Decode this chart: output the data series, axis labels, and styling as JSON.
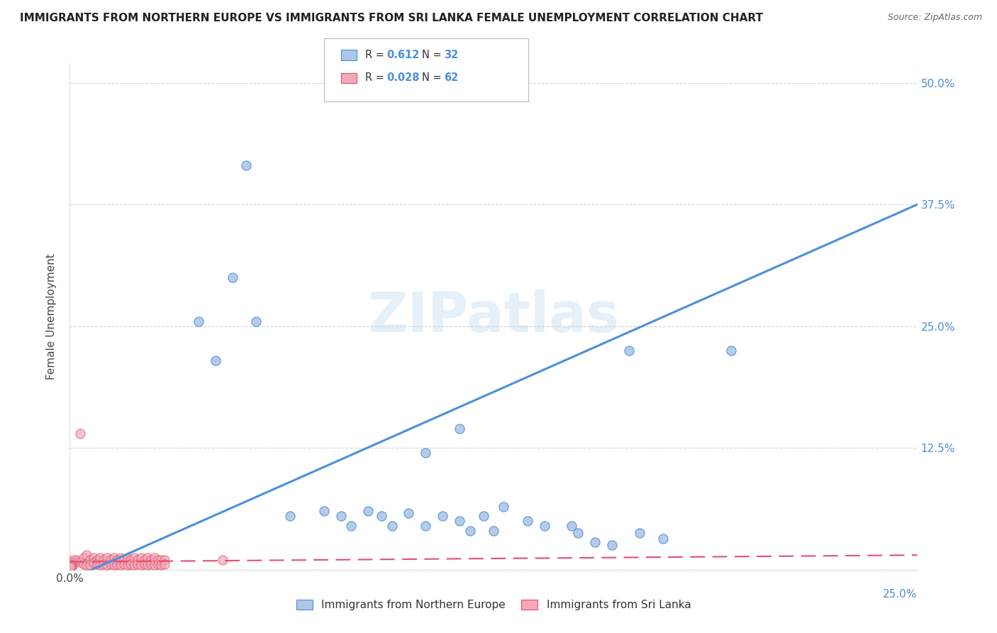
{
  "title": "IMMIGRANTS FROM NORTHERN EUROPE VS IMMIGRANTS FROM SRI LANKA FEMALE UNEMPLOYMENT CORRELATION CHART",
  "source": "Source: ZipAtlas.com",
  "ylabel": "Female Unemployment",
  "xlim": [
    0.0,
    0.25
  ],
  "ylim": [
    0.0,
    0.52
  ],
  "watermark": "ZIPatlas",
  "legend_label1": "Immigrants from Northern Europe",
  "legend_label2": "Immigrants from Sri Lanka",
  "color_blue": "#aec6e8",
  "color_pink": "#f4a8b5",
  "line_blue": "#4a90d9",
  "line_pink": "#e05070",
  "blue_line_x0": 0.0,
  "blue_line_y0": -0.01,
  "blue_line_x1": 0.25,
  "blue_line_y1": 0.375,
  "pink_line_x0": 0.0,
  "pink_line_y0": 0.008,
  "pink_line_x1": 0.25,
  "pink_line_y1": 0.015,
  "scatter_blue": [
    [
      0.052,
      0.415
    ],
    [
      0.048,
      0.3
    ],
    [
      0.038,
      0.255
    ],
    [
      0.055,
      0.255
    ],
    [
      0.043,
      0.215
    ],
    [
      0.065,
      0.055
    ],
    [
      0.075,
      0.06
    ],
    [
      0.08,
      0.055
    ],
    [
      0.083,
      0.045
    ],
    [
      0.088,
      0.06
    ],
    [
      0.092,
      0.055
    ],
    [
      0.095,
      0.045
    ],
    [
      0.1,
      0.058
    ],
    [
      0.105,
      0.045
    ],
    [
      0.11,
      0.055
    ],
    [
      0.115,
      0.05
    ],
    [
      0.118,
      0.04
    ],
    [
      0.122,
      0.055
    ],
    [
      0.125,
      0.04
    ],
    [
      0.128,
      0.065
    ],
    [
      0.135,
      0.05
    ],
    [
      0.14,
      0.045
    ],
    [
      0.148,
      0.045
    ],
    [
      0.15,
      0.038
    ],
    [
      0.155,
      0.028
    ],
    [
      0.16,
      0.025
    ],
    [
      0.168,
      0.038
    ],
    [
      0.175,
      0.032
    ],
    [
      0.165,
      0.225
    ],
    [
      0.195,
      0.225
    ],
    [
      0.115,
      0.145
    ],
    [
      0.105,
      0.12
    ]
  ],
  "scatter_pink": [
    [
      0.002,
      0.01
    ],
    [
      0.003,
      0.008
    ],
    [
      0.004,
      0.012
    ],
    [
      0.004,
      0.006
    ],
    [
      0.005,
      0.015
    ],
    [
      0.005,
      0.005
    ],
    [
      0.006,
      0.01
    ],
    [
      0.006,
      0.005
    ],
    [
      0.007,
      0.012
    ],
    [
      0.007,
      0.007
    ],
    [
      0.008,
      0.01
    ],
    [
      0.008,
      0.006
    ],
    [
      0.009,
      0.012
    ],
    [
      0.009,
      0.005
    ],
    [
      0.01,
      0.01
    ],
    [
      0.01,
      0.006
    ],
    [
      0.011,
      0.012
    ],
    [
      0.011,
      0.005
    ],
    [
      0.012,
      0.01
    ],
    [
      0.012,
      0.006
    ],
    [
      0.013,
      0.012
    ],
    [
      0.013,
      0.005
    ],
    [
      0.014,
      0.01
    ],
    [
      0.014,
      0.006
    ],
    [
      0.015,
      0.012
    ],
    [
      0.015,
      0.005
    ],
    [
      0.016,
      0.01
    ],
    [
      0.016,
      0.006
    ],
    [
      0.017,
      0.012
    ],
    [
      0.017,
      0.005
    ],
    [
      0.018,
      0.01
    ],
    [
      0.018,
      0.006
    ],
    [
      0.019,
      0.012
    ],
    [
      0.019,
      0.005
    ],
    [
      0.02,
      0.01
    ],
    [
      0.02,
      0.006
    ],
    [
      0.021,
      0.012
    ],
    [
      0.021,
      0.005
    ],
    [
      0.022,
      0.01
    ],
    [
      0.022,
      0.006
    ],
    [
      0.023,
      0.012
    ],
    [
      0.023,
      0.005
    ],
    [
      0.024,
      0.01
    ],
    [
      0.024,
      0.006
    ],
    [
      0.025,
      0.012
    ],
    [
      0.025,
      0.005
    ],
    [
      0.026,
      0.01
    ],
    [
      0.026,
      0.006
    ],
    [
      0.027,
      0.01
    ],
    [
      0.027,
      0.005
    ],
    [
      0.028,
      0.01
    ],
    [
      0.028,
      0.006
    ],
    [
      0.001,
      0.01
    ],
    [
      0.001,
      0.005
    ],
    [
      0.0005,
      0.008
    ],
    [
      0.0005,
      0.004
    ],
    [
      0.0003,
      0.006
    ],
    [
      0.0003,
      0.003
    ],
    [
      0.0002,
      0.005
    ],
    [
      0.0002,
      0.003
    ],
    [
      0.003,
      0.14
    ],
    [
      0.045,
      0.01
    ]
  ]
}
